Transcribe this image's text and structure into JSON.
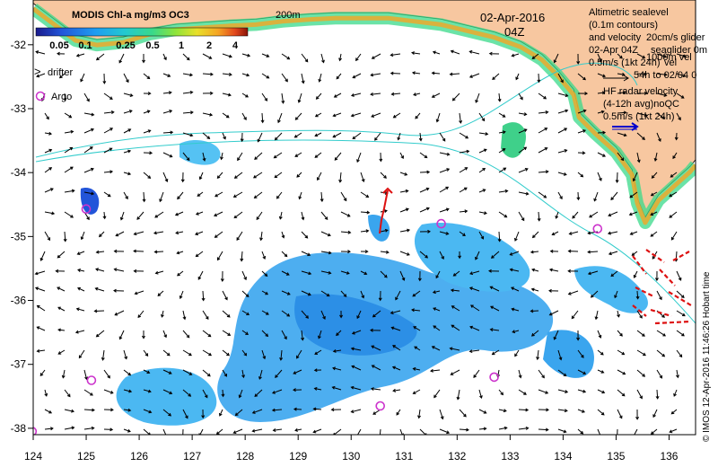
{
  "colorbar": {
    "title": "MODIS Chl-a mg/m3 OC3",
    "tick_labels": [
      "0.05",
      "0.1",
      "0.25",
      "0.5",
      "1",
      "2",
      "4"
    ],
    "colors": [
      "#1a1a8c",
      "#2255d9",
      "#1e9cf0",
      "#22c9d0",
      "#39d98a",
      "#8ee43a",
      "#e8e02a",
      "#f5a524",
      "#e2481d",
      "#8b1408"
    ]
  },
  "contour_label": "200m",
  "date": "02-Apr-2016",
  "time": "04Z",
  "legend": {
    "drifter_label": "drifter",
    "argo_label": "Argo",
    "altimetric_lines": [
      "Altimetric sealevel",
      "(0.1m contours)",
      "and velocity"
    ],
    "glider_lines": [
      "20cm/s glider",
      "seaglider 0m",
      "vel"
    ],
    "glider_date": "02-Apr 04Z",
    "ship_lines": [
      "1000m vel",
      "54h to 02/04 0"
    ],
    "speed_label": "0.5m/s (1kt 24h)",
    "hf_lines": [
      "HF radar velocity",
      "(4-12h avg)noQC"
    ],
    "hf_speed": "0.5m/s (1kt 24h)"
  },
  "credit": "© IMOS 12-Apr-2016 11:46:26 Hobart time",
  "axes": {
    "x_ticks": [
      "124",
      "125",
      "126",
      "127",
      "128",
      "129",
      "130",
      "131",
      "132",
      "133",
      "134",
      "135",
      "136"
    ],
    "y_ticks": [
      "-32",
      "-33",
      "-34",
      "-35",
      "-36",
      "-37",
      "-38"
    ],
    "x_range": [
      124,
      136.5
    ],
    "y_range": [
      -38.1,
      -31.3
    ]
  },
  "colors": {
    "land": "#f7c7a0",
    "ocean": "#ffffff",
    "contour": "#33cccc",
    "argo": "#cc33cc",
    "hf_radar": "#dd1111",
    "hf_arrow": "#0000cc"
  },
  "argo_floats": [
    {
      "lon": 125.0,
      "lat": -34.57
    },
    {
      "lon": 125.1,
      "lat": -37.25
    },
    {
      "lon": 130.55,
      "lat": -37.65
    },
    {
      "lon": 131.7,
      "lat": -34.8
    },
    {
      "lon": 132.7,
      "lat": -37.2
    },
    {
      "lon": 134.65,
      "lat": -34.88
    },
    {
      "lon": 123.98,
      "lat": -38.05
    }
  ],
  "coastline": [
    [
      124.0,
      -31.35
    ],
    [
      124.4,
      -31.6
    ],
    [
      124.8,
      -31.85
    ],
    [
      125.2,
      -31.92
    ],
    [
      125.7,
      -31.88
    ],
    [
      126.2,
      -31.75
    ],
    [
      126.7,
      -31.68
    ],
    [
      127.2,
      -31.65
    ],
    [
      127.7,
      -31.62
    ],
    [
      128.2,
      -31.6
    ],
    [
      128.7,
      -31.55
    ],
    [
      129.2,
      -31.52
    ],
    [
      129.7,
      -31.5
    ],
    [
      130.2,
      -31.5
    ],
    [
      130.7,
      -31.5
    ],
    [
      131.2,
      -31.55
    ],
    [
      131.7,
      -31.6
    ],
    [
      132.2,
      -31.7
    ],
    [
      132.7,
      -31.8
    ],
    [
      133.2,
      -31.95
    ],
    [
      133.6,
      -32.15
    ],
    [
      133.9,
      -32.4
    ],
    [
      134.2,
      -32.7
    ],
    [
      134.3,
      -33.05
    ],
    [
      134.6,
      -33.3
    ],
    [
      135.0,
      -33.6
    ],
    [
      135.3,
      -33.95
    ],
    [
      135.4,
      -34.4
    ],
    [
      135.55,
      -34.7
    ],
    [
      135.8,
      -34.35
    ],
    [
      136.0,
      -34.2
    ],
    [
      136.2,
      -34.05
    ],
    [
      136.4,
      -33.9
    ],
    [
      136.5,
      -33.8
    ]
  ]
}
